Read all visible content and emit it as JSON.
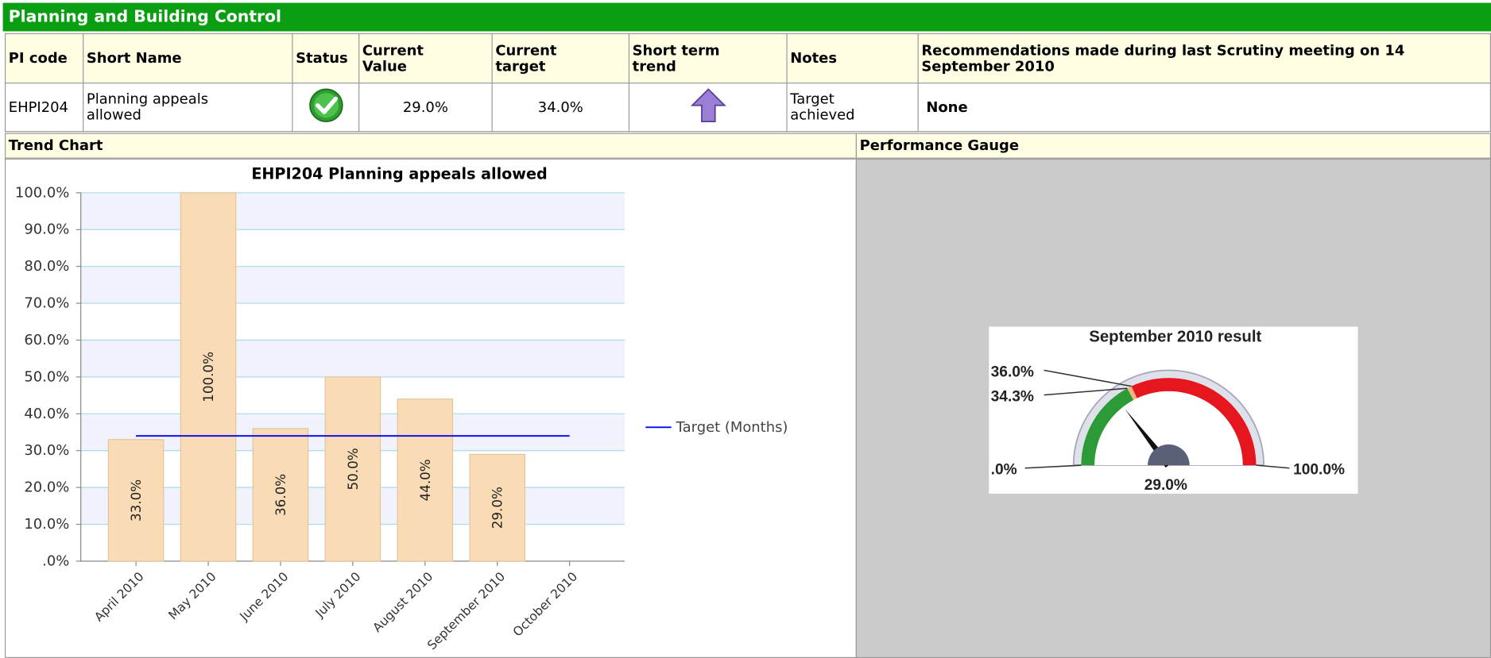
{
  "header": {
    "title": "Planning and Building Control"
  },
  "table": {
    "columns": [
      "PI code",
      "Short Name",
      "Status",
      "Current Value",
      "Current target",
      "Short term trend",
      "Notes",
      "Recommendations made during last Scrutiny meeting on 14 September 2010"
    ],
    "row": {
      "pi_code": "EHPI204",
      "short_name": "Planning appeals allowed",
      "current_value": "29.0%",
      "current_target": "34.0%",
      "notes": "Target achieved",
      "recommendations": "None"
    }
  },
  "sections": {
    "trend": "Trend Chart",
    "gauge": "Performance Gauge"
  },
  "chart_data": [
    {
      "type": "bar",
      "title": "EHPI204 Planning appeals allowed",
      "categories": [
        "April 2010",
        "May 2010",
        "June 2010",
        "July 2010",
        "August 2010",
        "September 2010",
        "October 2010"
      ],
      "values": [
        33,
        100,
        36,
        50,
        44,
        29,
        null
      ],
      "value_labels": [
        "33.0%",
        "100.0%",
        "36.0%",
        "50.0%",
        "44.0%",
        "29.0%",
        null
      ],
      "color": "#f9dcb6",
      "ylim": [
        0,
        100
      ],
      "yticks": [
        {
          "value": 0,
          "label": ".0%"
        },
        {
          "value": 10,
          "label": "10.0%"
        },
        {
          "value": 20,
          "label": "20.0%"
        },
        {
          "value": 30,
          "label": "30.0%"
        },
        {
          "value": 40,
          "label": "40.0%"
        },
        {
          "value": 50,
          "label": "50.0%"
        },
        {
          "value": 60,
          "label": "60.0%"
        },
        {
          "value": 70,
          "label": "70.0%"
        },
        {
          "value": 80,
          "label": "80.0%"
        },
        {
          "value": 90,
          "label": "90.0%"
        },
        {
          "value": 100,
          "label": "100.0%"
        }
      ],
      "grid": true,
      "line_series": {
        "name": "Target (Months)",
        "color": "#0000ee",
        "values": [
          34,
          34,
          34,
          34,
          34,
          34,
          34
        ]
      },
      "legend": "right"
    },
    {
      "type": "gauge",
      "title": "September 2010 result",
      "value": 29,
      "value_label": "29.0%",
      "lim": [
        0,
        100
      ],
      "ticks": [
        {
          "value": 0,
          "label": ".0%"
        },
        {
          "value": 34.3,
          "label": "34.3%"
        },
        {
          "value": 36,
          "label": "36.0%"
        },
        {
          "value": 100,
          "label": "100.0%"
        }
      ],
      "band_colors": [
        "#2c9a36",
        "#f0b47e",
        "#e5161e"
      ]
    }
  ]
}
